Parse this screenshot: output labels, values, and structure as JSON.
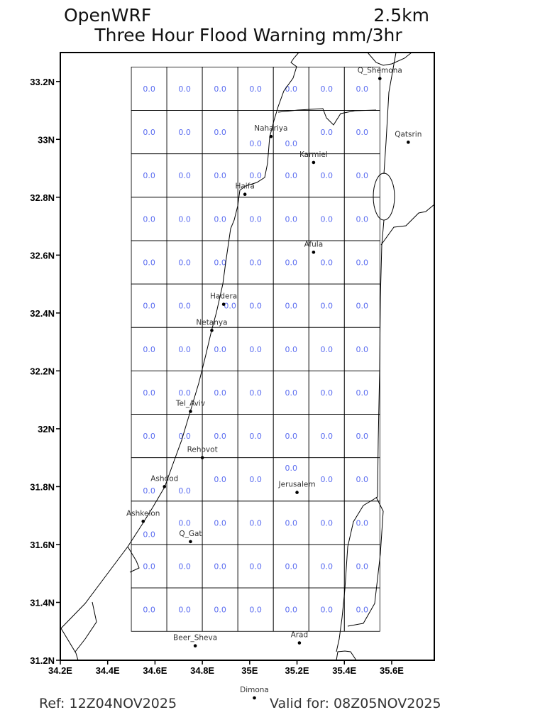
{
  "header": {
    "model": "OpenWRF",
    "resolution": "2.5km",
    "title": "Three Hour Flood Warning mm/3hr"
  },
  "footer": {
    "ref": "Ref: 12Z04NOV2025",
    "valid": "Valid for: 08Z05NOV2025"
  },
  "colors": {
    "value_text": "#5a6cf0",
    "grid": "#000000",
    "frame": "#000000"
  },
  "chart_data": {
    "type": "map-grid",
    "xlim": [
      34.2,
      35.78
    ],
    "ylim": [
      31.2,
      33.3
    ],
    "x_ticks": [
      {
        "value": 34.2,
        "label": "34.2E"
      },
      {
        "value": 34.4,
        "label": "34.4E"
      },
      {
        "value": 34.6,
        "label": "34.6E"
      },
      {
        "value": 34.8,
        "label": "34.8E"
      },
      {
        "value": 35.0,
        "label": "35E"
      },
      {
        "value": 35.2,
        "label": "35.2E"
      },
      {
        "value": 35.4,
        "label": "35.4E"
      },
      {
        "value": 35.6,
        "label": "35.6E"
      }
    ],
    "y_ticks": [
      {
        "value": 31.2,
        "label": "31.2N"
      },
      {
        "value": 31.4,
        "label": "31.4N"
      },
      {
        "value": 31.6,
        "label": "31.6N"
      },
      {
        "value": 31.8,
        "label": "31.8N"
      },
      {
        "value": 32.0,
        "label": "32N"
      },
      {
        "value": 32.2,
        "label": "32.2N"
      },
      {
        "value": 32.4,
        "label": "32.4N"
      },
      {
        "value": 32.6,
        "label": "32.6N"
      },
      {
        "value": 32.8,
        "label": "32.8N"
      },
      {
        "value": 33.0,
        "label": "33N"
      },
      {
        "value": 33.2,
        "label": "33.2N"
      }
    ],
    "grid": {
      "lon_min": 34.5,
      "lat_max": 33.25,
      "cell_deg": 0.15,
      "cols": 7,
      "rows": 13,
      "values": [
        [
          "0.0",
          "0.0",
          "0.0",
          "0.0",
          "0.0",
          "0.0",
          "0.0"
        ],
        [
          "0.0",
          "0.0",
          "0.0",
          "0.0",
          "0.0",
          "0.0",
          "0.0"
        ],
        [
          "0.0",
          "0.0",
          "0.0",
          "0.0",
          "0.0",
          "0.0",
          "0.0"
        ],
        [
          "0.0",
          "0.0",
          "0.0",
          "0.0",
          "0.0",
          "0.0",
          "0.0"
        ],
        [
          "0.0",
          "0.0",
          "0.0",
          "0.0",
          "0.0",
          "0.0",
          "0.0"
        ],
        [
          "0.0",
          "0.0",
          "0.0",
          "0.0",
          "0.0",
          "0.0",
          "0.0"
        ],
        [
          "0.0",
          "0.0",
          "0.0",
          "0.0",
          "0.0",
          "0.0",
          "0.0"
        ],
        [
          "0.0",
          "0.0",
          "0.0",
          "0.0",
          "0.0",
          "0.0",
          "0.0"
        ],
        [
          "0.0",
          "0.0",
          "0.0",
          "0.0",
          "0.0",
          "0.0",
          "0.0"
        ],
        [
          "0.0",
          "0.0",
          "0.0",
          "0.0",
          "0.0",
          "0.0",
          "0.0"
        ],
        [
          "0.0",
          "0.0",
          "0.0",
          "0.0",
          "0.0",
          "0.0",
          "0.0"
        ],
        [
          "0.0",
          "0.0",
          "0.0",
          "0.0",
          "0.0",
          "0.0",
          "0.0"
        ],
        [
          "0.0",
          "0.0",
          "0.0",
          "0.0",
          "0.0",
          "0.0",
          "0.0"
        ]
      ]
    },
    "cities": [
      {
        "name": "Q_Shemona",
        "lon": 35.55,
        "lat": 33.21
      },
      {
        "name": "Qatsrin",
        "lon": 35.67,
        "lat": 32.99
      },
      {
        "name": "Nahariya",
        "lon": 35.09,
        "lat": 33.01
      },
      {
        "name": "Karmiel",
        "lon": 35.27,
        "lat": 32.92
      },
      {
        "name": "Haifa",
        "lon": 34.98,
        "lat": 32.81
      },
      {
        "name": "Afula",
        "lon": 35.27,
        "lat": 32.61
      },
      {
        "name": "Hadera",
        "lon": 34.89,
        "lat": 32.43
      },
      {
        "name": "Netanya",
        "lon": 34.84,
        "lat": 32.34
      },
      {
        "name": "Tel_Aviv",
        "lon": 34.75,
        "lat": 32.06
      },
      {
        "name": "Rehovot",
        "lon": 34.8,
        "lat": 31.9
      },
      {
        "name": "Ashdod",
        "lon": 34.64,
        "lat": 31.8
      },
      {
        "name": "Jerusalem",
        "lon": 35.2,
        "lat": 31.78
      },
      {
        "name": "Ashkelon",
        "lon": 34.55,
        "lat": 31.68
      },
      {
        "name": "Q_Gat",
        "lon": 34.75,
        "lat": 31.61
      },
      {
        "name": "Beer_Sheva",
        "lon": 34.77,
        "lat": 31.25
      },
      {
        "name": "Arad",
        "lon": 35.21,
        "lat": 31.26
      },
      {
        "name": "Dimona",
        "lon": 35.02,
        "lat": 31.07
      }
    ]
  }
}
